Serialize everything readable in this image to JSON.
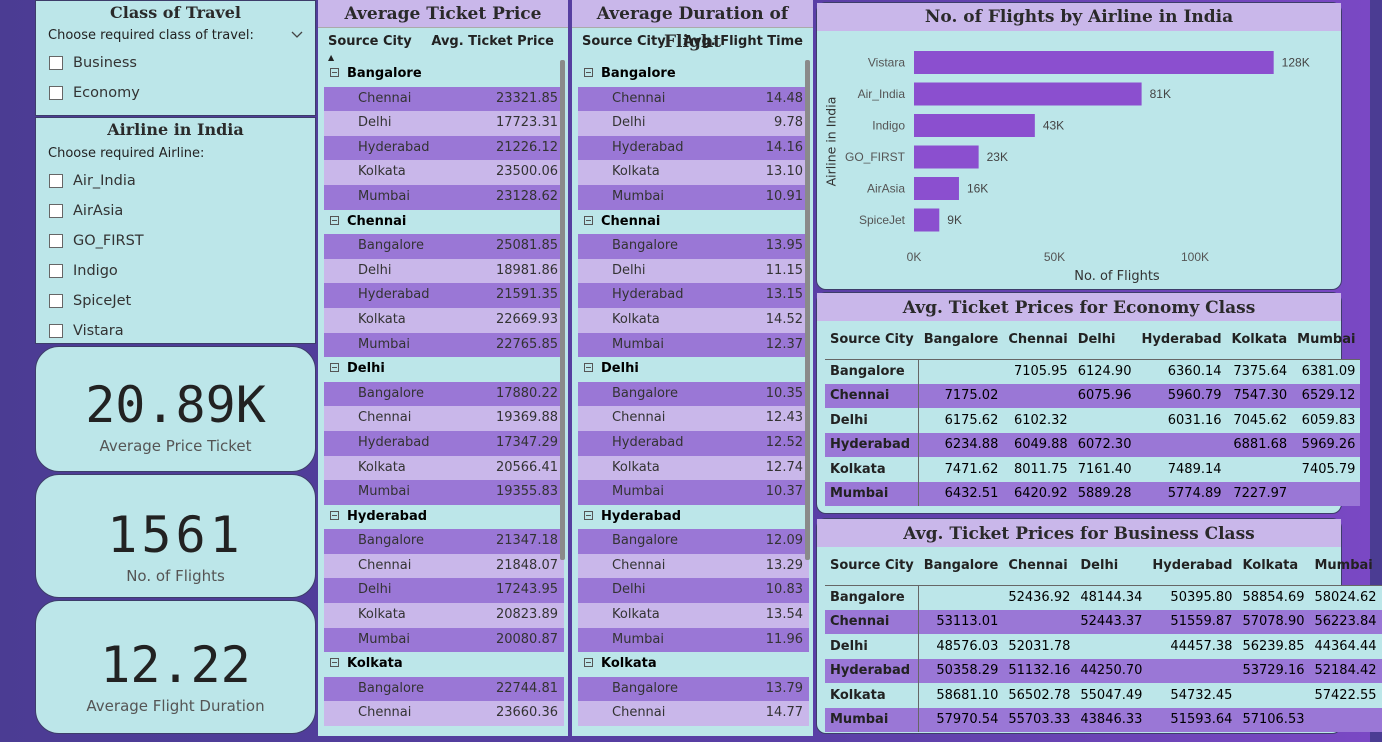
{
  "class_slicer": {
    "title": "Class of Travel",
    "instruction": "Choose required class of travel:",
    "options": [
      "Business",
      "Economy"
    ]
  },
  "airline_slicer": {
    "title": "Airline in India",
    "instruction": "Choose required Airline:",
    "options": [
      "Air_India",
      "AirAsia",
      "GO_FIRST",
      "Indigo",
      "SpiceJet",
      "Vistara"
    ]
  },
  "kpis": {
    "avg_price": {
      "value": "20.89K",
      "label": "Average Price Ticket"
    },
    "flights": {
      "value": "1561",
      "label": "No. of Flights"
    },
    "duration": {
      "value": "12.22",
      "label": "Average Flight Duration"
    }
  },
  "avg_ticket_table": {
    "title": "Average Ticket Price",
    "col1": "Source City",
    "col2": "Avg. Ticket Price",
    "groups": [
      {
        "city": "Bangalore",
        "rows": [
          [
            "Chennai",
            "23321.85"
          ],
          [
            "Delhi",
            "17723.31"
          ],
          [
            "Hyderabad",
            "21226.12"
          ],
          [
            "Kolkata",
            "23500.06"
          ],
          [
            "Mumbai",
            "23128.62"
          ]
        ]
      },
      {
        "city": "Chennai",
        "rows": [
          [
            "Bangalore",
            "25081.85"
          ],
          [
            "Delhi",
            "18981.86"
          ],
          [
            "Hyderabad",
            "21591.35"
          ],
          [
            "Kolkata",
            "22669.93"
          ],
          [
            "Mumbai",
            "22765.85"
          ]
        ]
      },
      {
        "city": "Delhi",
        "rows": [
          [
            "Bangalore",
            "17880.22"
          ],
          [
            "Chennai",
            "19369.88"
          ],
          [
            "Hyderabad",
            "17347.29"
          ],
          [
            "Kolkata",
            "20566.41"
          ],
          [
            "Mumbai",
            "19355.83"
          ]
        ]
      },
      {
        "city": "Hyderabad",
        "rows": [
          [
            "Bangalore",
            "21347.18"
          ],
          [
            "Chennai",
            "21848.07"
          ],
          [
            "Delhi",
            "17243.95"
          ],
          [
            "Kolkata",
            "20823.89"
          ],
          [
            "Mumbai",
            "20080.87"
          ]
        ]
      },
      {
        "city": "Kolkata",
        "rows": [
          [
            "Bangalore",
            "22744.81"
          ],
          [
            "Chennai",
            "23660.36"
          ]
        ]
      }
    ]
  },
  "avg_duration_table": {
    "title": "Average Duration of Flight",
    "col1": "Source City",
    "col2": "Avg. Flight Time",
    "groups": [
      {
        "city": "Bangalore",
        "rows": [
          [
            "Chennai",
            "14.48"
          ],
          [
            "Delhi",
            "9.78"
          ],
          [
            "Hyderabad",
            "14.16"
          ],
          [
            "Kolkata",
            "13.10"
          ],
          [
            "Mumbai",
            "10.91"
          ]
        ]
      },
      {
        "city": "Chennai",
        "rows": [
          [
            "Bangalore",
            "13.95"
          ],
          [
            "Delhi",
            "11.15"
          ],
          [
            "Hyderabad",
            "13.15"
          ],
          [
            "Kolkata",
            "14.52"
          ],
          [
            "Mumbai",
            "12.37"
          ]
        ]
      },
      {
        "city": "Delhi",
        "rows": [
          [
            "Bangalore",
            "10.35"
          ],
          [
            "Chennai",
            "12.43"
          ],
          [
            "Hyderabad",
            "12.52"
          ],
          [
            "Kolkata",
            "12.74"
          ],
          [
            "Mumbai",
            "10.37"
          ]
        ]
      },
      {
        "city": "Hyderabad",
        "rows": [
          [
            "Bangalore",
            "12.09"
          ],
          [
            "Chennai",
            "13.29"
          ],
          [
            "Delhi",
            "10.83"
          ],
          [
            "Kolkata",
            "13.54"
          ],
          [
            "Mumbai",
            "11.96"
          ]
        ]
      },
      {
        "city": "Kolkata",
        "rows": [
          [
            "Bangalore",
            "13.79"
          ],
          [
            "Chennai",
            "14.77"
          ]
        ]
      }
    ]
  },
  "chart_data": {
    "type": "bar",
    "orientation": "horizontal",
    "title": "No. of Flights by Airline in India",
    "xlabel": "No. of Flights",
    "ylabel": "Airline in India",
    "categories": [
      "Vistara",
      "Air_India",
      "Indigo",
      "GO_FIRST",
      "AirAsia",
      "SpiceJet"
    ],
    "values": [
      128000,
      81000,
      43000,
      23000,
      16000,
      9000
    ],
    "data_labels": [
      "128K",
      "81K",
      "43K",
      "23K",
      "16K",
      "9K"
    ],
    "xticks": [
      "0K",
      "50K",
      "100K"
    ],
    "xlim": [
      0,
      128000
    ],
    "color": "#8b4fcf",
    "grid": false
  },
  "economy_table": {
    "title": "Avg. Ticket Prices for Economy Class",
    "corner": "Source City",
    "columns": [
      "Bangalore",
      "Chennai",
      "Delhi",
      "Hyderabad",
      "Kolkata",
      "Mumbai"
    ],
    "rows": [
      {
        "city": "Bangalore",
        "values": [
          "",
          "7105.95",
          "6124.90",
          "6360.14",
          "7375.64",
          "6381.09"
        ]
      },
      {
        "city": "Chennai",
        "values": [
          "7175.02",
          "",
          "6075.96",
          "5960.79",
          "7547.30",
          "6529.12"
        ]
      },
      {
        "city": "Delhi",
        "values": [
          "6175.62",
          "6102.32",
          "",
          "6031.16",
          "7045.62",
          "6059.83"
        ]
      },
      {
        "city": "Hyderabad",
        "values": [
          "6234.88",
          "6049.88",
          "6072.30",
          "",
          "6881.68",
          "5969.26"
        ]
      },
      {
        "city": "Kolkata",
        "values": [
          "7471.62",
          "8011.75",
          "7161.40",
          "7489.14",
          "",
          "7405.79"
        ]
      },
      {
        "city": "Mumbai",
        "values": [
          "6432.51",
          "6420.92",
          "5889.28",
          "5774.89",
          "7227.97",
          ""
        ]
      }
    ]
  },
  "business_table": {
    "title": "Avg. Ticket Prices for Business Class",
    "corner": "Source City",
    "columns": [
      "Bangalore",
      "Chennai",
      "Delhi",
      "Hyderabad",
      "Kolkata",
      "Mumbai"
    ],
    "rows": [
      {
        "city": "Bangalore",
        "values": [
          "",
          "52436.92",
          "48144.34",
          "50395.80",
          "58854.69",
          "58024.62"
        ]
      },
      {
        "city": "Chennai",
        "values": [
          "53113.01",
          "",
          "52443.37",
          "51559.87",
          "57078.90",
          "56223.84"
        ]
      },
      {
        "city": "Delhi",
        "values": [
          "48576.03",
          "52031.78",
          "",
          "44457.38",
          "56239.85",
          "44364.44"
        ]
      },
      {
        "city": "Hyderabad",
        "values": [
          "50358.29",
          "51132.16",
          "44250.70",
          "",
          "53729.16",
          "52184.42"
        ]
      },
      {
        "city": "Kolkata",
        "values": [
          "58681.10",
          "56502.78",
          "55047.49",
          "54732.45",
          "",
          "57422.55"
        ]
      },
      {
        "city": "Mumbai",
        "values": [
          "57970.54",
          "55703.33",
          "43846.33",
          "51593.64",
          "57106.53",
          ""
        ]
      }
    ]
  }
}
